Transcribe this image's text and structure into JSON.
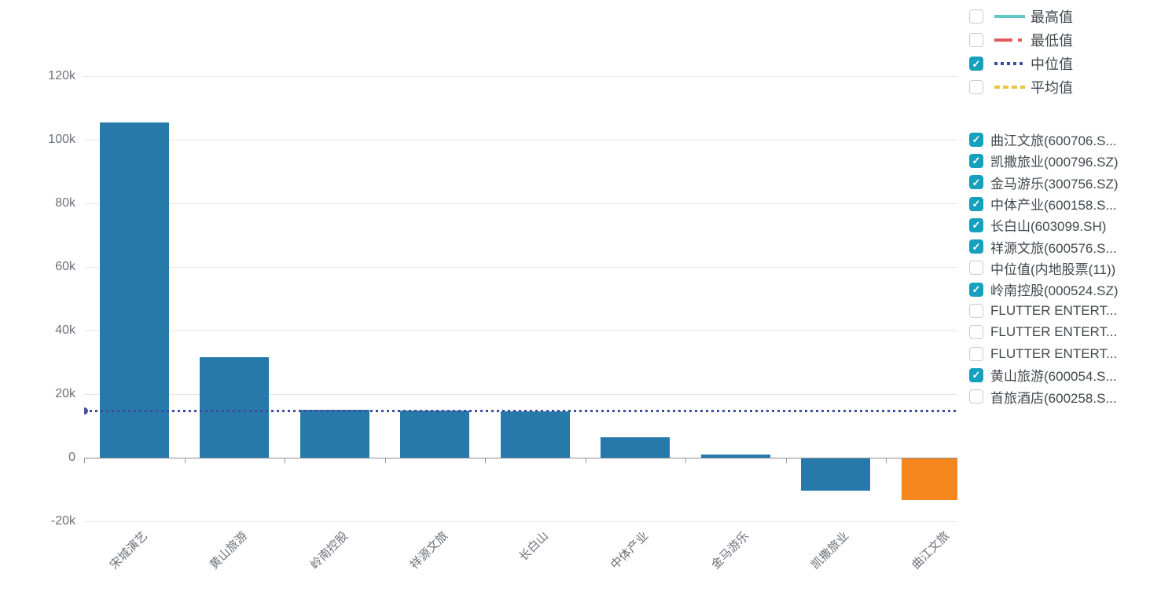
{
  "colors": {
    "bar": "#2679a9",
    "bar_highlight": "#f5871c",
    "median_line": "#3d4c9e",
    "median_dot": "#46549e",
    "grid_line": "#e3e7f3",
    "axis_line": "#8a8d93",
    "axis_text": "#6e7079",
    "legend_text": "#42464b",
    "checkbox_checked_bg": "#15a1bd",
    "legend_max_color": "#5ec8c4",
    "legend_min_color": "#e25b5c",
    "legend_median_color": "#3d4c9e",
    "legend_avg_color": "#ebc53e"
  },
  "icons": {
    "checkmark": "✓"
  },
  "chart_data": {
    "type": "bar",
    "title": "",
    "categories": [
      "宋城演艺",
      "黄山旅游",
      "岭南控股",
      "祥源文旅",
      "长白山",
      "中体产业",
      "金马游乐",
      "凯撒旅业",
      "曲江文旅"
    ],
    "values": [
      105500,
      31700,
      15000,
      14800,
      14600,
      6500,
      900,
      -10000,
      -13000
    ],
    "highlight_index": 8,
    "ylim": [
      -20000,
      120000
    ],
    "yticks": [
      {
        "value": 120000,
        "label": "120k"
      },
      {
        "value": 100000,
        "label": "100k"
      },
      {
        "value": 80000,
        "label": "80k"
      },
      {
        "value": 60000,
        "label": "60k"
      },
      {
        "value": 40000,
        "label": "40k"
      },
      {
        "value": 20000,
        "label": "20k"
      },
      {
        "value": 0,
        "label": "0"
      },
      {
        "value": -20000,
        "label": "-20k"
      }
    ],
    "median_reference_line": {
      "value": 14700,
      "label": "中位值"
    },
    "grid": true,
    "legend_position": "right"
  },
  "stat_legend": {
    "items": [
      {
        "label": "最高值",
        "checked": false,
        "line_style": "solid"
      },
      {
        "label": "最低值",
        "checked": false,
        "line_style": "dash-dot"
      },
      {
        "label": "中位值",
        "checked": true,
        "line_style": "dotted"
      },
      {
        "label": "平均值",
        "checked": false,
        "line_style": "dashed"
      }
    ]
  },
  "series_legend": {
    "items": [
      {
        "label": "曲江文旅(600706.S...",
        "checked": true
      },
      {
        "label": "凯撒旅业(000796.SZ)",
        "checked": true
      },
      {
        "label": "金马游乐(300756.SZ)",
        "checked": true
      },
      {
        "label": "中体产业(600158.S...",
        "checked": true
      },
      {
        "label": "长白山(603099.SH)",
        "checked": true
      },
      {
        "label": "祥源文旅(600576.S...",
        "checked": true
      },
      {
        "label": "中位值(内地股票(11))",
        "checked": false
      },
      {
        "label": "岭南控股(000524.SZ)",
        "checked": true
      },
      {
        "label": "FLUTTER ENTERT...",
        "checked": false
      },
      {
        "label": "FLUTTER ENTERT...",
        "checked": false
      },
      {
        "label": "FLUTTER ENTERT...",
        "checked": false
      },
      {
        "label": "黄山旅游(600054.S...",
        "checked": true
      },
      {
        "label": "首旅酒店(600258.S...",
        "checked": false
      }
    ]
  }
}
